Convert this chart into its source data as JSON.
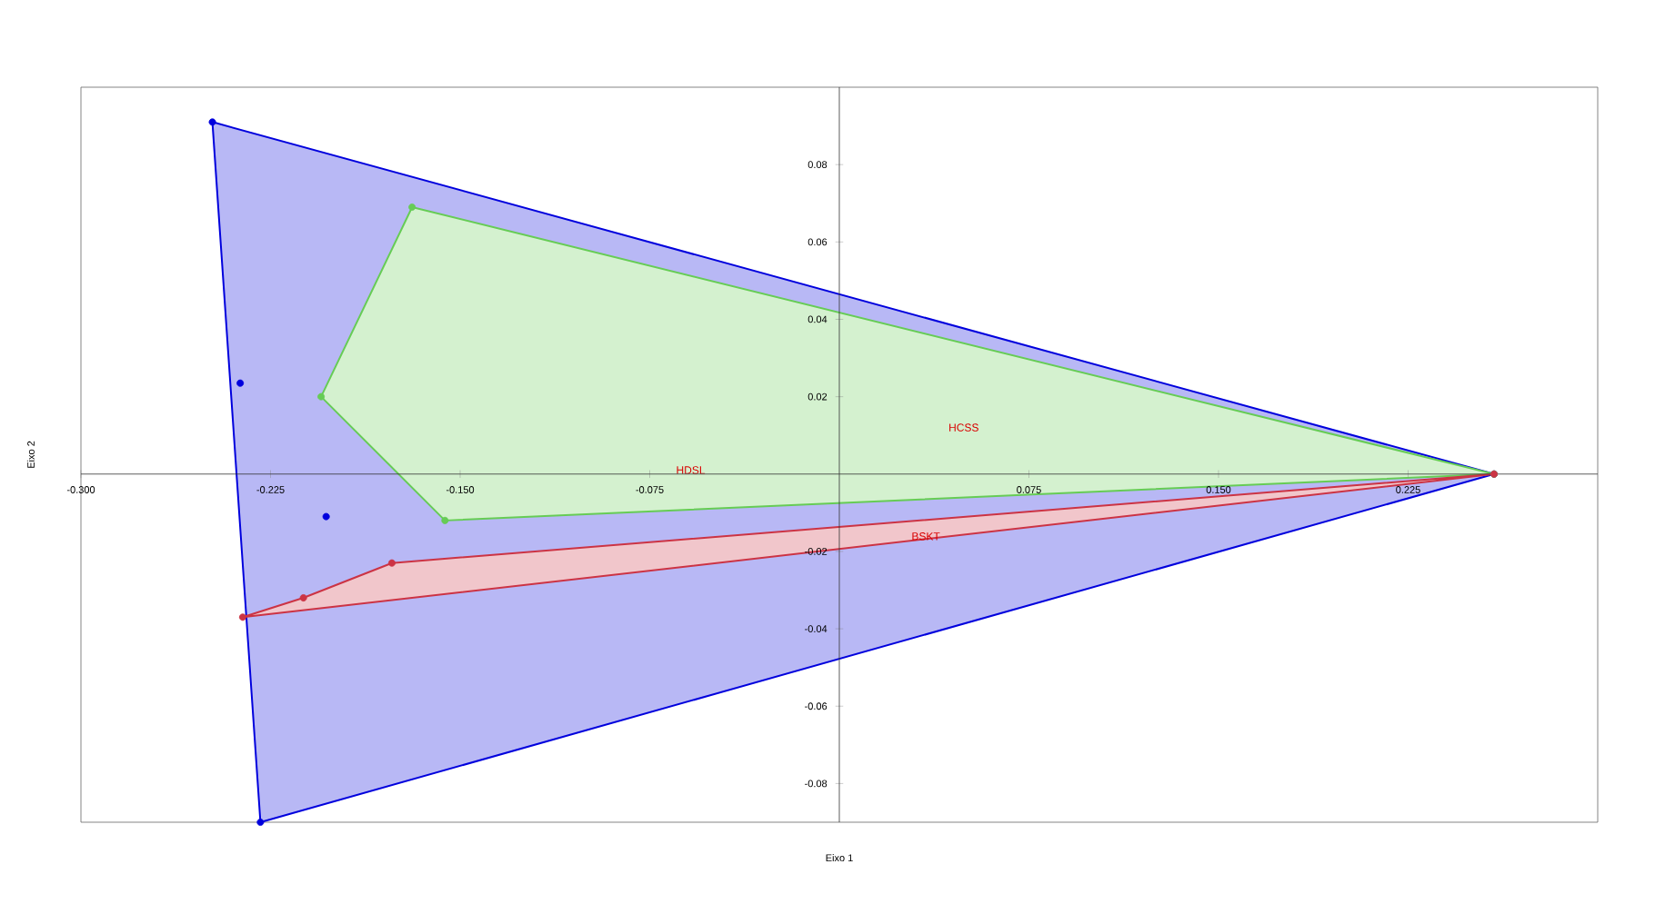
{
  "chart_data": {
    "type": "scatter",
    "xlabel": "Eixo 1",
    "ylabel": "Eixo 2",
    "xlim": [
      -0.3,
      0.3
    ],
    "ylim": [
      -0.09,
      0.1
    ],
    "xticks": [
      {
        "value": -0.3,
        "label": "-0.300"
      },
      -0.225,
      {
        "value": -0.15,
        "label": "-0.150"
      },
      -0.075,
      0.075,
      {
        "value": 0.15,
        "label": "0.150"
      },
      0.225
    ],
    "yticks": [
      -0.08,
      -0.06,
      -0.04,
      -0.02,
      0.02,
      0.04,
      0.06,
      0.08
    ],
    "grid": false,
    "marker": "circle",
    "series": [
      {
        "type": "area",
        "color": "#0000dd",
        "x": [
          -0.248,
          -0.229,
          0.259
        ],
        "values": [
          0.091,
          -0.09,
          0.0
        ]
      },
      {
        "color": "#0000dd",
        "x": [
          -0.237,
          -0.203
        ],
        "values": [
          0.0235,
          -0.011
        ]
      },
      {
        "type": "area",
        "color": "#66cc55",
        "x": [
          -0.169,
          -0.205,
          -0.156,
          0.259
        ],
        "values": [
          0.069,
          0.02,
          -0.012,
          0.0
        ]
      },
      {
        "type": "area",
        "color": "#cc3344",
        "x": [
          -0.236,
          -0.212,
          -0.177,
          0.259
        ],
        "values": [
          -0.037,
          -0.032,
          -0.023,
          0.0
        ]
      }
    ],
    "annotations": [
      "HCSS",
      "HDSL",
      "BSKT"
    ]
  }
}
